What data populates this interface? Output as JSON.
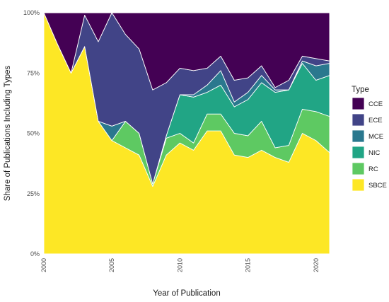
{
  "chart_data": {
    "type": "area",
    "stacked": true,
    "normalized": true,
    "xlabel": "Year of Publication",
    "ylabel": "Share of Publications Including Types",
    "xlim": [
      2000,
      2021
    ],
    "ylim": [
      0,
      1
    ],
    "x_ticks": [
      2000,
      2005,
      2010,
      2015,
      2020
    ],
    "y_ticks": [
      {
        "value": 0,
        "label": "0%"
      },
      {
        "value": 0.25,
        "label": "25%"
      },
      {
        "value": 0.5,
        "label": "50%"
      },
      {
        "value": 0.75,
        "label": "75%"
      },
      {
        "value": 1,
        "label": "100%"
      }
    ],
    "grid": true,
    "legend": {
      "title": "Type",
      "position": "right"
    },
    "x": [
      2000,
      2001,
      2002,
      2003,
      2004,
      2005,
      2006,
      2007,
      2008,
      2009,
      2010,
      2011,
      2012,
      2013,
      2014,
      2015,
      2016,
      2017,
      2018,
      2019,
      2020,
      2021
    ],
    "series": [
      {
        "name": "SBCE",
        "color": "#FDE725",
        "values": [
          1.0,
          0.87,
          0.75,
          0.86,
          0.55,
          0.47,
          0.44,
          0.41,
          0.28,
          0.41,
          0.46,
          0.43,
          0.51,
          0.51,
          0.41,
          0.4,
          0.43,
          0.4,
          0.38,
          0.5,
          0.47,
          0.42
        ]
      },
      {
        "name": "RC",
        "color": "#5EC962",
        "values": [
          0.0,
          0.0,
          0.0,
          0.0,
          0.0,
          0.0,
          0.11,
          0.09,
          0.01,
          0.07,
          0.04,
          0.03,
          0.07,
          0.07,
          0.09,
          0.09,
          0.12,
          0.04,
          0.07,
          0.1,
          0.12,
          0.15
        ]
      },
      {
        "name": "NIC",
        "color": "#21A585",
        "values": [
          0.0,
          0.0,
          0.0,
          0.0,
          0.0,
          0.0,
          0.0,
          0.0,
          0.0,
          0.01,
          0.16,
          0.19,
          0.09,
          0.12,
          0.11,
          0.15,
          0.16,
          0.23,
          0.23,
          0.19,
          0.13,
          0.17
        ]
      },
      {
        "name": "MCE",
        "color": "#2A788E",
        "values": [
          0.0,
          0.0,
          0.0,
          0.0,
          0.0,
          0.06,
          0.0,
          0.0,
          0.0,
          0.0,
          0.0,
          0.01,
          0.03,
          0.06,
          0.02,
          0.03,
          0.03,
          0.01,
          0.0,
          0.01,
          0.06,
          0.05
        ]
      },
      {
        "name": "ECE",
        "color": "#414487",
        "values": [
          0.0,
          0.0,
          0.0,
          0.13,
          0.33,
          0.47,
          0.36,
          0.35,
          0.39,
          0.22,
          0.11,
          0.1,
          0.07,
          0.06,
          0.09,
          0.06,
          0.04,
          0.01,
          0.04,
          0.02,
          0.03,
          0.01
        ]
      },
      {
        "name": "CCE",
        "color": "#440154",
        "values": [
          0.0,
          0.13,
          0.25,
          0.01,
          0.12,
          0.0,
          0.09,
          0.15,
          0.32,
          0.29,
          0.23,
          0.24,
          0.23,
          0.18,
          0.28,
          0.27,
          0.22,
          0.31,
          0.28,
          0.18,
          0.19,
          0.2
        ]
      }
    ],
    "legend_order": [
      "CCE",
      "ECE",
      "MCE",
      "NIC",
      "RC",
      "SBCE"
    ]
  }
}
